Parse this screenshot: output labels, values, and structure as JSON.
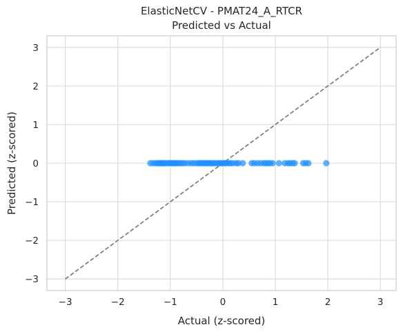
{
  "chart_data": {
    "type": "scatter",
    "title": "ElasticNetCV - PMAT24_A_RTCR",
    "subtitle": "Predicted vs Actual",
    "xlabel": "Actual (z-scored)",
    "ylabel": "Predicted (z-scored)",
    "xlim": [
      -3.35,
      3.3
    ],
    "ylim": [
      -3.3,
      3.3
    ],
    "xticks": [
      -3,
      -2,
      -1,
      0,
      1,
      2,
      3
    ],
    "xtick_labels": [
      "−3",
      "−2",
      "−1",
      "0",
      "1",
      "2",
      "3"
    ],
    "yticks": [
      -3,
      -2,
      -1,
      0,
      1,
      2,
      3
    ],
    "ytick_labels": [
      "−3",
      "−2",
      "−1",
      "0",
      "1",
      "2",
      "3"
    ],
    "grid": true,
    "points": {
      "color": "#1e90ff",
      "x": [
        -1.38,
        -1.33,
        -1.28,
        -1.25,
        -1.22,
        -1.19,
        -1.17,
        -1.15,
        -1.12,
        -1.1,
        -1.06,
        -1.03,
        -1.0,
        -0.97,
        -0.95,
        -0.92,
        -0.9,
        -0.87,
        -0.83,
        -0.8,
        -0.76,
        -0.72,
        -0.66,
        -0.6,
        -0.55,
        -0.5,
        -0.46,
        -0.43,
        -0.4,
        -0.37,
        -0.34,
        -0.31,
        -0.28,
        -0.25,
        -0.22,
        -0.19,
        -0.15,
        -0.12,
        -0.08,
        -0.05,
        -0.02,
        0.02,
        0.05,
        0.08,
        0.12,
        0.15,
        0.2,
        0.26,
        0.3,
        0.38,
        0.55,
        0.6,
        0.66,
        0.72,
        0.78,
        0.82,
        0.86,
        0.9,
        0.95,
        1.07,
        1.18,
        1.24,
        1.28,
        1.33,
        1.37,
        1.53,
        1.58,
        1.63,
        1.97
      ],
      "y": [
        0.0,
        0.0,
        0.0,
        0.0,
        0.0,
        0.0,
        0.0,
        0.0,
        0.0,
        0.0,
        0.0,
        0.0,
        0.0,
        0.0,
        0.0,
        0.0,
        0.0,
        0.0,
        0.0,
        0.0,
        0.0,
        0.0,
        0.0,
        0.0,
        0.0,
        0.0,
        0.0,
        0.0,
        0.0,
        0.0,
        0.0,
        0.0,
        0.0,
        0.0,
        0.0,
        0.0,
        0.0,
        0.0,
        0.0,
        0.0,
        0.0,
        0.0,
        0.0,
        0.0,
        0.0,
        0.0,
        0.0,
        0.0,
        0.0,
        0.0,
        0.0,
        0.0,
        0.0,
        0.0,
        0.0,
        0.0,
        0.0,
        0.0,
        0.0,
        0.0,
        0.0,
        0.0,
        0.0,
        0.0,
        0.0,
        0.0,
        0.0,
        0.0,
        0.0
      ]
    },
    "reference_line": {
      "style": "dashed",
      "color": "#808080",
      "x": [
        -3,
        3
      ],
      "y": [
        -3,
        3
      ]
    },
    "colors": {
      "grid": "#d9d9d9",
      "spine": "#cccccc",
      "text": "#262626"
    }
  }
}
